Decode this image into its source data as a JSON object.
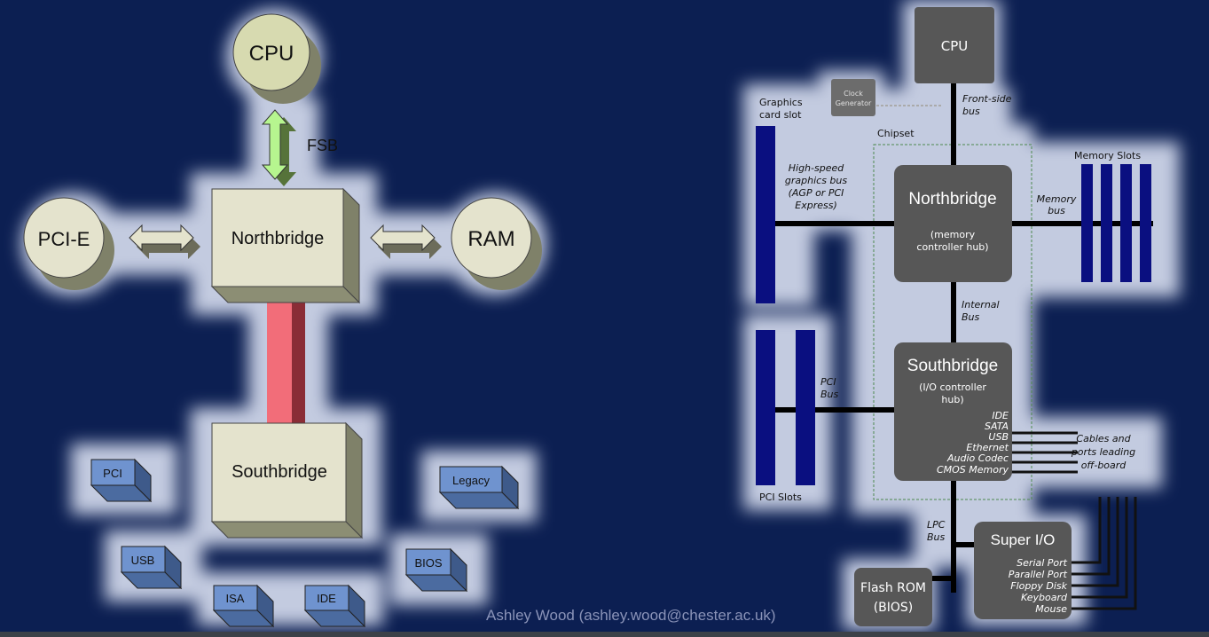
{
  "left_diagram": {
    "cpu": "CPU",
    "fsb": "FSB",
    "pcie": "PCI-E",
    "northbridge": "Northbridge",
    "ram": "RAM",
    "southbridge": "Southbridge",
    "pci": "PCI",
    "legacy": "Legacy",
    "usb": "USB",
    "bios": "BIOS",
    "isa": "ISA",
    "ide": "IDE"
  },
  "right_diagram": {
    "cpu": "CPU",
    "clock_line1": "Clock",
    "clock_line2": "Generator",
    "fsb_line1": "Front-side",
    "fsb_line2": "bus",
    "graphics_line1": "Graphics",
    "graphics_line2": "card slot",
    "chipset": "Chipset",
    "memory_slots": "Memory Slots",
    "hsbus_line1": "High-speed",
    "hsbus_line2": "graphics bus",
    "hsbus_line3": "(AGP or PCI",
    "hsbus_line4": "Express)",
    "northbridge": "Northbridge",
    "nb_sub1": "(memory",
    "nb_sub2": "controller hub)",
    "membus_line1": "Memory",
    "membus_line2": "bus",
    "internal_line1": "Internal",
    "internal_line2": "Bus",
    "southbridge": "Southbridge",
    "sb_sub1": "(I/O controller",
    "sb_sub2": "hub)",
    "pcibus_line1": "PCI",
    "pcibus_line2": "Bus",
    "sb_ports": [
      "IDE",
      "SATA",
      "USB",
      "Ethernet",
      "Audio Codec",
      "CMOS Memory"
    ],
    "cables_line1": "Cables and",
    "cables_line2": "ports leading",
    "cables_line3": "off-board",
    "pci_slots": "PCI Slots",
    "lpc_line1": "LPC",
    "lpc_line2": "Bus",
    "superio": "Super I/O",
    "superio_ports": [
      "Serial Port",
      "Parallel Port",
      "Floppy Disk",
      "Keyboard",
      "Mouse"
    ],
    "flash_line1": "Flash ROM",
    "flash_line2": "(BIOS)"
  },
  "footer": "Ashley Wood (ashley.wood@chester.ac.uk)",
  "colors": {
    "background": "#0c1f52",
    "glow": "#c3cbe0",
    "chip_face": "#e4e3cd",
    "chip_side": "#7f8169",
    "small_box": "#6f93cf",
    "fsb_arrow": "#b6f58f",
    "pink_bus": "#f26d79",
    "dark_box": "#575757",
    "bus_blue": "#0a0f80"
  }
}
